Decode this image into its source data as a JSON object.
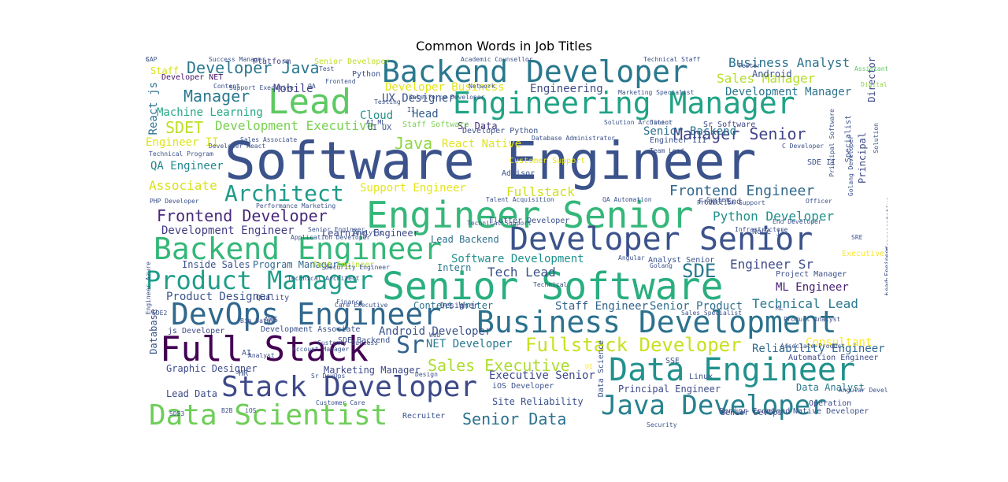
{
  "chart_data": {
    "type": "wordcloud",
    "title": "Common Words in Job Titles",
    "words": [
      {
        "text": "Software Engineer",
        "color": "#3b528b"
      },
      {
        "text": "Senior Software",
        "color": "#29af7f"
      },
      {
        "text": "Engineer Senior",
        "color": "#35b779"
      },
      {
        "text": "Backend Developer",
        "color": "#2a788e"
      },
      {
        "text": "Engineering Manager",
        "color": "#20a386"
      },
      {
        "text": "Lead",
        "color": "#5ec962"
      },
      {
        "text": "Developer Senior",
        "color": "#3b528b"
      },
      {
        "text": "Backend Engineer",
        "color": "#35b779"
      },
      {
        "text": "Business Development",
        "color": "#2c728e"
      },
      {
        "text": "DevOps Engineer",
        "color": "#31688e"
      },
      {
        "text": "Full Stack",
        "color": "#440154"
      },
      {
        "text": "Data Engineer",
        "color": "#21918c"
      },
      {
        "text": "Stack Developer",
        "color": "#3e4a89"
      },
      {
        "text": "Data Scientist",
        "color": "#6ece58"
      },
      {
        "text": "Java Developer",
        "color": "#26828e"
      },
      {
        "text": "Product Manager",
        "color": "#1f9e89"
      },
      {
        "text": "Engineer Backend",
        "color": "#424086"
      },
      {
        "text": "Architect",
        "color": "#1e9b8a"
      },
      {
        "text": "Fullstack Developer",
        "color": "#c8e020"
      },
      {
        "text": "Frontend Developer",
        "color": "#482878"
      },
      {
        "text": "Developer Java",
        "color": "#2a788e"
      },
      {
        "text": "Manager Senior",
        "color": "#414487"
      },
      {
        "text": "Frontend Engineer",
        "color": "#31688e"
      },
      {
        "text": "SDET",
        "color": "#bddf26"
      },
      {
        "text": "Manager",
        "color": "#2a788e"
      },
      {
        "text": "Sr",
        "color": "#33638d"
      },
      {
        "text": "SDE",
        "color": "#2a788e"
      },
      {
        "text": "Sales Executive",
        "color": "#addc30"
      },
      {
        "text": "Senior Data",
        "color": "#2c728e"
      },
      {
        "text": "Java",
        "color": "#8fd744"
      },
      {
        "text": "Development Executive",
        "color": "#7ad151"
      },
      {
        "text": "Sales Manager",
        "color": "#b5de2b"
      },
      {
        "text": "Python Developer",
        "color": "#21918c"
      },
      {
        "text": "Business Analyst",
        "color": "#2c728e"
      },
      {
        "text": "Associate",
        "color": "#d8e219"
      },
      {
        "text": "Fullstack",
        "color": "#d0e11c"
      },
      {
        "text": "QA Engineer",
        "color": "#23888e"
      },
      {
        "text": "Development Engineer",
        "color": "#433e85"
      },
      {
        "text": "Engineer II",
        "color": "#dde318"
      },
      {
        "text": "Tech Lead",
        "color": "#3b528b"
      },
      {
        "text": "Technical Lead",
        "color": "#2a788e"
      },
      {
        "text": "Support Engineer",
        "color": "#e5e419"
      },
      {
        "text": "Staff Engineer",
        "color": "#33638d"
      },
      {
        "text": "Software Development",
        "color": "#21918c"
      },
      {
        "text": "Product Designer",
        "color": "#3b528b"
      },
      {
        "text": "Machine Learning",
        "color": "#22a884"
      },
      {
        "text": "Development Manager",
        "color": "#2c728e"
      },
      {
        "text": "Engineer Sr",
        "color": "#3e4a89"
      },
      {
        "text": "ML Engineer",
        "color": "#482173"
      },
      {
        "text": "UX Designer",
        "color": "#39568c"
      },
      {
        "text": "Developer Business",
        "color": "#e2e418"
      },
      {
        "text": "Engineering",
        "color": "#3e4a89"
      },
      {
        "text": "Executive Senior",
        "color": "#3e4a89"
      },
      {
        "text": "Senior Backend",
        "color": "#2c728e"
      },
      {
        "text": "Senior Product",
        "color": "#2e6e8e"
      },
      {
        "text": "Android Developer",
        "color": "#3b528b"
      },
      {
        "text": "NET Developer",
        "color": "#2a788e"
      },
      {
        "text": "Consultant",
        "color": "#fde725"
      },
      {
        "text": "Reliability Engineer",
        "color": "#31688e"
      },
      {
        "text": "Graphic Designer",
        "color": "#3e4a89"
      },
      {
        "text": "Cloud",
        "color": "#21918c"
      },
      {
        "text": "Head",
        "color": "#365c8d"
      },
      {
        "text": "Sr Data",
        "color": "#46307e"
      },
      {
        "text": "React Native",
        "color": "#e2e418"
      },
      {
        "text": "Developer Python",
        "color": "#3b528b"
      },
      {
        "text": "Mobile",
        "color": "#424086"
      },
      {
        "text": "Python",
        "color": "#3b528b"
      },
      {
        "text": "Developer NET",
        "color": "#471365"
      },
      {
        "text": "Staff",
        "color": "#d8e219"
      },
      {
        "text": "React js",
        "color": "#2d708e"
      },
      {
        "text": "Platform",
        "color": "#424086"
      },
      {
        "text": "Senior Developer",
        "color": "#c0df25"
      },
      {
        "text": "Inside Sales",
        "color": "#3b528b"
      },
      {
        "text": "Program Manager",
        "color": "#31688e"
      },
      {
        "text": "Learning Engineer",
        "color": "#3e4a89"
      },
      {
        "text": "Lead Backend",
        "color": "#2c728e"
      },
      {
        "text": "Intern",
        "color": "#2a788e"
      },
      {
        "text": "Content Writer",
        "color": "#2c728e"
      },
      {
        "text": "Marketing Manager",
        "color": "#3e4a89"
      },
      {
        "text": "Site Reliability",
        "color": "#3b528b"
      },
      {
        "text": "Principal Engineer",
        "color": "#3e4a89"
      },
      {
        "text": "Data Analyst",
        "color": "#2a788e"
      },
      {
        "text": "Native Developer",
        "color": "#3b528b"
      },
      {
        "text": "Senior Frontend",
        "color": "#3e4a89"
      },
      {
        "text": "Senior DevOps",
        "color": "#3e4a89"
      },
      {
        "text": "Recruiter",
        "color": "#3b528b"
      },
      {
        "text": "Lead Data",
        "color": "#3e4a89"
      },
      {
        "text": "iOS Developer",
        "color": "#3b528b"
      },
      {
        "text": "Operation",
        "color": "#3e4a89"
      },
      {
        "text": "Automation Engineer",
        "color": "#3e4a89"
      },
      {
        "text": "Project Manager",
        "color": "#3b528b"
      },
      {
        "text": "Node js",
        "color": "#3b528b"
      },
      {
        "text": "Sr Software",
        "color": "#3e4a89"
      },
      {
        "text": "Engineer III",
        "color": "#3b528b"
      },
      {
        "text": "Analyst Senior",
        "color": "#3b528b"
      },
      {
        "text": "Front End",
        "color": "#3e4a89"
      },
      {
        "text": "Database",
        "color": "#3b528b"
      },
      {
        "text": "js Developer",
        "color": "#3e4a89"
      },
      {
        "text": "Development Associate",
        "color": "#3b528b"
      },
      {
        "text": "SDE Backend",
        "color": "#3b528b"
      },
      {
        "text": "Analyst",
        "color": "#3e4a89"
      },
      {
        "text": "Design",
        "color": "#3b528b"
      },
      {
        "text": "Designer",
        "color": "#3e4a89"
      },
      {
        "text": "Technical",
        "color": "#3b528b"
      },
      {
        "text": "Finance",
        "color": "#3b528b"
      },
      {
        "text": "Quality",
        "color": "#3e4a89"
      },
      {
        "text": "Test Engineer",
        "color": "#b5de2b"
      },
      {
        "text": "Customer Support",
        "color": "#e2e418"
      },
      {
        "text": "Advisor",
        "color": "#3b528b"
      },
      {
        "text": "Principal",
        "color": "#3e4a89"
      },
      {
        "text": "Director",
        "color": "#3e4a89"
      },
      {
        "text": "Specialist",
        "color": "#3b528b"
      },
      {
        "text": "Staff Software",
        "color": "#7ad151"
      },
      {
        "text": "UI UX",
        "color": "#3b528b"
      },
      {
        "text": "Android",
        "color": "#3b528b"
      },
      {
        "text": "Executive",
        "color": "#fde725"
      },
      {
        "text": "Linux",
        "color": "#3b528b"
      },
      {
        "text": "AWS",
        "color": "#3b528b"
      },
      {
        "text": "AI",
        "color": "#3b528b"
      },
      {
        "text": "SSE",
        "color": "#3b528b"
      },
      {
        "text": "HR",
        "color": "#3b528b"
      },
      {
        "text": "iOS",
        "color": "#3b528b"
      },
      {
        "text": "II",
        "color": "#3b528b"
      },
      {
        "text": "UI",
        "color": "#fde725"
      },
      {
        "text": "Tester",
        "color": "#3b528b"
      },
      {
        "text": "Data Science",
        "color": "#3b528b"
      },
      {
        "text": "Development Representative",
        "color": "#3b528b"
      },
      {
        "text": "SDE II",
        "color": "#3b528b"
      },
      {
        "text": "Talent Acquisition",
        "color": "#3b528b"
      },
      {
        "text": "QA Automation",
        "color": "#3b528b"
      },
      {
        "text": "Flutter Developer",
        "color": "#3b528b"
      },
      {
        "text": "Technical Support",
        "color": "#3b528b"
      },
      {
        "text": "Senior Engineer",
        "color": "#3b528b"
      },
      {
        "text": "Analytic",
        "color": "#3b528b"
      },
      {
        "text": "Big Data",
        "color": "#3b528b"
      },
      {
        "text": "Success Manager",
        "color": "#3b528b"
      },
      {
        "text": "Support Executive",
        "color": "#3b528b"
      },
      {
        "text": "Academic Counsellor",
        "color": "#3b528b"
      },
      {
        "text": "Technical Staff",
        "color": "#3b528b"
      },
      {
        "text": "Assistant Manager",
        "color": "#5ec962"
      },
      {
        "text": "Marketing Specialist",
        "color": "#3b528b"
      },
      {
        "text": "Solution Architect",
        "color": "#3b528b"
      },
      {
        "text": "Team Lead",
        "color": "#3b528b"
      },
      {
        "text": "System",
        "color": "#3b528b"
      },
      {
        "text": "Digital Marketing",
        "color": "#8fd744"
      },
      {
        "text": "Technical Program",
        "color": "#3b528b"
      },
      {
        "text": "Sales Associate",
        "color": "#3b528b"
      },
      {
        "text": "Developer React",
        "color": "#3b528b"
      },
      {
        "text": "PHP Developer",
        "color": "#3b528b"
      },
      {
        "text": "Performance Marketing",
        "color": "#3b528b"
      },
      {
        "text": "Application Developer",
        "color": "#3b528b"
      },
      {
        "text": "Technical Architect",
        "color": "#3b528b"
      },
      {
        "text": "Care Executive",
        "color": "#3b528b"
      },
      {
        "text": "Security Engineer",
        "color": "#3b528b"
      },
      {
        "text": "Account Manager",
        "color": "#3b528b"
      },
      {
        "text": "Sales Specialist",
        "color": "#3b528b"
      },
      {
        "text": "Product Analyst",
        "color": "#3b528b"
      },
      {
        "text": "Associate Product",
        "color": "#3b528b"
      },
      {
        "text": "Lead Engineer",
        "color": "#3b528b"
      },
      {
        "text": "Angular Developer",
        "color": "#3b528b"
      },
      {
        "text": "Customer Care",
        "color": "#3b528b"
      },
      {
        "text": "Customer Success",
        "color": "#3b528b"
      },
      {
        "text": "Sr DevOps",
        "color": "#3b528b"
      },
      {
        "text": "Engineer Azure",
        "color": "#3b528b"
      },
      {
        "text": "Production Support",
        "color": "#3b528b"
      },
      {
        "text": "Officer",
        "color": "#3b528b"
      },
      {
        "text": "End Developer",
        "color": "#3b528b"
      },
      {
        "text": "Infrastructure",
        "color": "#3b528b"
      },
      {
        "text": "Golang",
        "color": "#3b528b"
      },
      {
        "text": "Angular",
        "color": "#3b528b"
      },
      {
        "text": "Network",
        "color": "#3b528b"
      },
      {
        "text": "Junior",
        "color": "#3b528b"
      },
      {
        "text": "Content",
        "color": "#3b528b"
      },
      {
        "text": "Frontend",
        "color": "#3b528b"
      },
      {
        "text": "Security",
        "color": "#3b528b"
      },
      {
        "text": "Web",
        "color": "#3b528b"
      },
      {
        "text": "Test",
        "color": "#3b528b"
      },
      {
        "text": "QA",
        "color": "#3b528b"
      },
      {
        "text": "AI ML",
        "color": "#3b528b"
      },
      {
        "text": "Testing",
        "color": "#3b528b"
      },
      {
        "text": "Salesforce Developer",
        "color": "#3b528b"
      },
      {
        "text": "Database Administrator",
        "color": "#3b528b"
      },
      {
        "text": "Solution",
        "color": "#3b528b"
      },
      {
        "text": "Golang Developer",
        "color": "#3b528b"
      },
      {
        "text": "Principal Software",
        "color": "#3b528b"
      },
      {
        "text": "C Developer",
        "color": "#3b528b"
      },
      {
        "text": "SDE3",
        "color": "#3b528b"
      },
      {
        "text": "SDE2",
        "color": "#3b528b"
      },
      {
        "text": "B2B",
        "color": "#3b528b"
      },
      {
        "text": "SRE",
        "color": "#3b528b"
      },
      {
        "text": "ML",
        "color": "#3b528b"
      },
      {
        "text": "SAP",
        "color": "#3b528b"
      },
      {
        "text": "C",
        "color": "#3b528b"
      }
    ]
  }
}
